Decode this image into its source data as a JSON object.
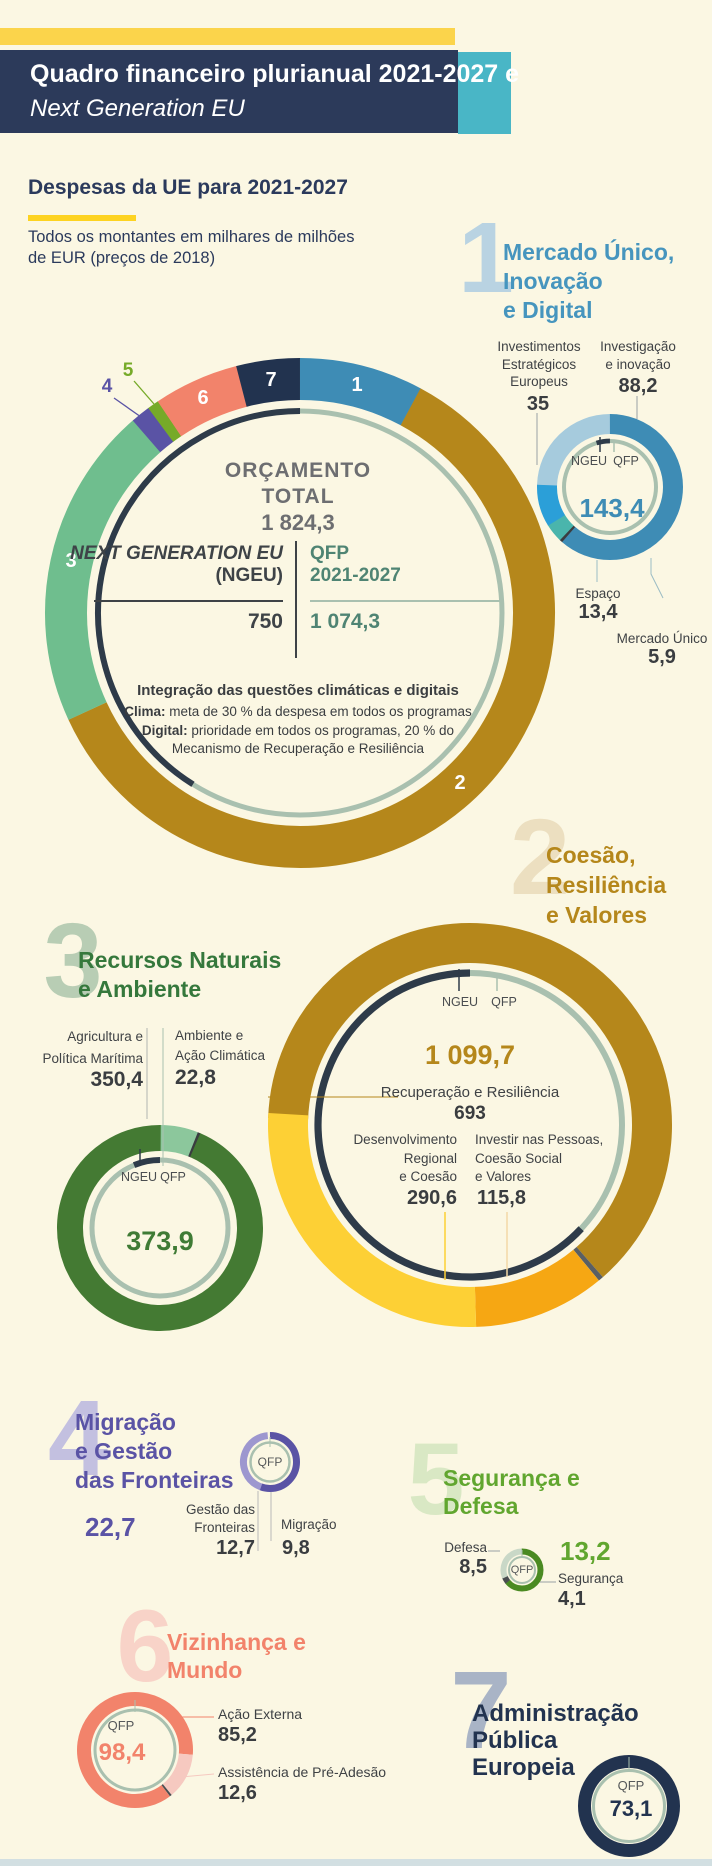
{
  "header": {
    "title_line1": "Quadro financeiro plurianual 2021-2027 e",
    "title_line2": "Next Generation EU",
    "bar_color": "#fbd44b",
    "block_color": "#2c3a5a",
    "accent_color": "#49b6c6"
  },
  "intro": {
    "heading": "Despesas da UE para 2021-2027",
    "note_line1": "Todos os montantes em milhares de milhões",
    "note_line2": "de EUR (preços de 2018)"
  },
  "ring_labels": {
    "ngeu": "NGEU",
    "qfp": "QFP"
  },
  "budget_center": {
    "title_line1": "ORÇAMENTO",
    "title_line2": "TOTAL",
    "total": "1 824,3",
    "ngeu_label_line1": "NEXT GENERATION EU",
    "ngeu_label_line2": "(NGEU)",
    "qfp_label_line1": "QFP",
    "qfp_label_line2": "2021-2027",
    "ngeu_value": "750",
    "qfp_value": "1 074,3",
    "climate_title": "Integração das questões climáticas e digitais",
    "clima_bold": "Clima:",
    "clima_rest": " meta de 30 % da despesa em todos os programas",
    "digital_bold": "Digital:",
    "digital_rest": " prioridade em todos os programas, 20 % do",
    "digital_line2": "Mecanismo de Recuperação e Resiliência"
  },
  "sections": {
    "s1": {
      "number": "1",
      "title_lines": [
        "Mercado Único,",
        "Inovação",
        "e Digital"
      ],
      "color": "#4695be",
      "total": "143,4",
      "labels": {
        "inv_estrategicos": {
          "l1": "Investimentos",
          "l2": "Estratégicos",
          "l3": "Europeus",
          "value": "35"
        },
        "investigacao": {
          "l1": "Investigação",
          "l2": "e inovação",
          "value": "88,2"
        },
        "espaco": {
          "text": "Espaço",
          "value": "13,4"
        },
        "mercado_unico": {
          "text": "Mercado Único",
          "value": "5,9"
        }
      }
    },
    "s2": {
      "number": "2",
      "title_lines": [
        "Coesão,",
        "Resiliência",
        "e Valores"
      ],
      "color": "#b5871b",
      "total": "1 099,7",
      "labels": {
        "recuperacao": {
          "text": "Recuperação e Resiliência",
          "value": "693"
        },
        "desenvolvimento": {
          "l1": "Desenvolvimento",
          "l2": "Regional",
          "l3": "e Coesão",
          "value": "290,6"
        },
        "investir": {
          "l1": "Investir nas Pessoas,",
          "l2": "Coesão Social",
          "l3": "e Valores",
          "value": "115,8"
        }
      }
    },
    "s3": {
      "number": "3",
      "title_lines": [
        "Recursos Naturais",
        "e Ambiente"
      ],
      "color": "#35783c",
      "total": "373,9",
      "labels": {
        "agricultura": {
          "l1": "Agricultura e",
          "l2": "Política Marítima",
          "value": "350,4"
        },
        "ambiente": {
          "l1": "Ambiente e",
          "l2": "Ação Climática",
          "value": "22,8"
        }
      }
    },
    "s4": {
      "number": "4",
      "title_lines": [
        "Migração",
        "e Gestão",
        "das Fronteiras"
      ],
      "color": "#5a53a5",
      "total": "22,7",
      "center_label": "QFP",
      "labels": {
        "gestao": {
          "l1": "Gestão das",
          "l2": "Fronteiras",
          "value": "12,7"
        },
        "migracao": {
          "text": "Migração",
          "value": "9,8"
        }
      }
    },
    "s5": {
      "number": "5",
      "title_lines": [
        "Segurança e",
        "Defesa"
      ],
      "color": "#61a62f",
      "total": "13,2",
      "center_label": "QFP",
      "labels": {
        "defesa": {
          "text": "Defesa",
          "value": "8,5"
        },
        "seguranca": {
          "text": "Segurança",
          "value": "4,1"
        }
      }
    },
    "s6": {
      "number": "6",
      "title_lines": [
        "Vizinhança e",
        "Mundo"
      ],
      "color": "#f2836b",
      "total": "98,4",
      "center_label": "QFP",
      "labels": {
        "acao_externa": {
          "text": "Ação Externa",
          "value": "85,2"
        },
        "pre_adesao": {
          "text": "Assistência de Pré-Adesão",
          "value": "12,6"
        }
      }
    },
    "s7": {
      "number": "7",
      "title_lines": [
        "Administração",
        "Pública",
        "Europeia"
      ],
      "color": "#22334f",
      "total": "73,1",
      "center_label": "QFP"
    }
  },
  "chart_data": [
    {
      "id": "main",
      "type": "donut",
      "title": "Orçamento total 1 824,3",
      "total": 1824.3,
      "start_deg": 0,
      "segments": [
        {
          "label": "1 Mercado Único, Inovação e Digital",
          "value": 143.4,
          "color": "#3e8cb5"
        },
        {
          "label": "2 Coesão, Resiliência e Valores",
          "value": 1099.7,
          "color": "#b5871b"
        },
        {
          "label": "3 Recursos Naturais e Ambiente",
          "value": 373.9,
          "color": "#6fbe8e"
        },
        {
          "label": "4 Migração e Gestão das Fronteiras",
          "value": 22.7,
          "color": "#5a53a5"
        },
        {
          "label": "5 Segurança e Defesa",
          "value": 13.2,
          "color": "#76aa28"
        },
        {
          "label": "6 Vizinhança e Mundo",
          "value": 98.4,
          "color": "#f2836b"
        },
        {
          "label": "7 Administração Pública Europeia",
          "value": 73.1,
          "color": "#22334f"
        }
      ],
      "inner": {
        "ngeu_value": 750,
        "qfp_value": 1074.3,
        "ngeu_color": "#2e3b49",
        "qfp_color": "#a9c0af"
      }
    },
    {
      "id": "d1",
      "type": "donut",
      "title": "Mercado Único, Inovação e Digital 143,4",
      "total": 143.4,
      "start_deg": 0,
      "segments": [
        {
          "label": "Investigação e inovação",
          "value": 88.2,
          "color": "#3e8cb5"
        },
        {
          "label": "divider",
          "value": 0.9,
          "color": "#3a3d40"
        },
        {
          "label": "Mercado Único",
          "value": 5.9,
          "color": "#4ab5ac"
        },
        {
          "label": "Espaço",
          "value": 13.4,
          "color": "#2b9fd8"
        },
        {
          "label": "Investimentos Estratégicos Europeus",
          "value": 35,
          "color": "#a6cbdd"
        }
      ],
      "inner": {
        "ngeu_span_deg": 17,
        "ngeu_color": "#2e3b49",
        "qfp_color": "#a9c0af"
      }
    },
    {
      "id": "d2",
      "type": "donut",
      "title": "Coesão, Resiliência e Valores 1 099,7",
      "total": 1099.7,
      "start_deg": 272,
      "segments": [
        {
          "label": "Recuperação e Resiliência",
          "value": 693,
          "color": "#b5871b"
        },
        {
          "label": "divider",
          "value": 0.3,
          "color": "#5a5f63"
        },
        {
          "label": "Investir nas Pessoas, Coesão Social e Valores",
          "value": 115.8,
          "color": "#f6a713"
        },
        {
          "label": "Desenvolvimento Regional e Coesão",
          "value": 290.6,
          "color": "#fdd035"
        }
      ],
      "inner": {
        "ngeu_span_deg": 227,
        "ngeu_color": "#2e3b49",
        "qfp_color": "#a9c0af"
      }
    },
    {
      "id": "d3",
      "type": "donut",
      "title": "Recursos Naturais e Ambiente 373,9",
      "total": 373.9,
      "start_deg": 0,
      "segments": [
        {
          "label": "Ambiente e Ação Climática",
          "value": 22.8,
          "color": "#8cc79c"
        },
        {
          "label": "divider",
          "value": 0.7,
          "color": "#3a3d40"
        },
        {
          "label": "Agricultura e Política Marítima",
          "value": 350.4,
          "color": "#447a33"
        }
      ],
      "inner": {
        "ngeu_span_deg": 22,
        "ngeu_color": "#2e3b49",
        "qfp_color": "#a9c0af"
      }
    },
    {
      "id": "d4",
      "type": "donut",
      "title": "Migração e Gestão das Fronteiras 22,7",
      "total": 22.7,
      "start_deg": 0,
      "segments": [
        {
          "label": "Gestão das Fronteiras",
          "value": 12.7,
          "color": "#5a53a5"
        },
        {
          "label": "Migração",
          "value": 9.8,
          "color": "#9d97cf"
        },
        {
          "label": "gap",
          "value": 0.2,
          "color": "#fbf7e3"
        }
      ],
      "inner": {
        "qfp_color": "#a9c0af"
      }
    },
    {
      "id": "d5",
      "type": "donut",
      "title": "Segurança e Defesa 13,2",
      "total": 13.2,
      "start_deg": 0,
      "segments": [
        {
          "label": "Defesa",
          "value": 8.5,
          "color": "#4a8a22"
        },
        {
          "label": "divider",
          "value": 0.6,
          "color": "#4a4d50"
        },
        {
          "label": "Segurança",
          "value": 4.1,
          "color": "#c9d8c7"
        }
      ],
      "inner": {
        "qfp_color": "#a9c0af"
      }
    },
    {
      "id": "d6",
      "type": "donut",
      "title": "Vizinhança e Mundo 98,4",
      "total": 98.4,
      "start_deg": 143,
      "segments": [
        {
          "label": "Ação Externa",
          "value": 85.2,
          "color": "#f2836b"
        },
        {
          "label": "Assistência de Pré-Adesão",
          "value": 12.6,
          "color": "#f6c9c0"
        },
        {
          "label": "divider",
          "value": 0.6,
          "color": "#4a4d50"
        }
      ],
      "inner": {
        "qfp_color": "#a9c0af"
      }
    },
    {
      "id": "d7",
      "type": "donut",
      "title": "Administração Pública Europeia 73,1",
      "total": 73.1,
      "start_deg": 0,
      "segments": [
        {
          "label": "QFP",
          "value": 73.1,
          "color": "#22334f"
        }
      ],
      "inner": {
        "qfp_color": "#a9c0af"
      }
    }
  ]
}
